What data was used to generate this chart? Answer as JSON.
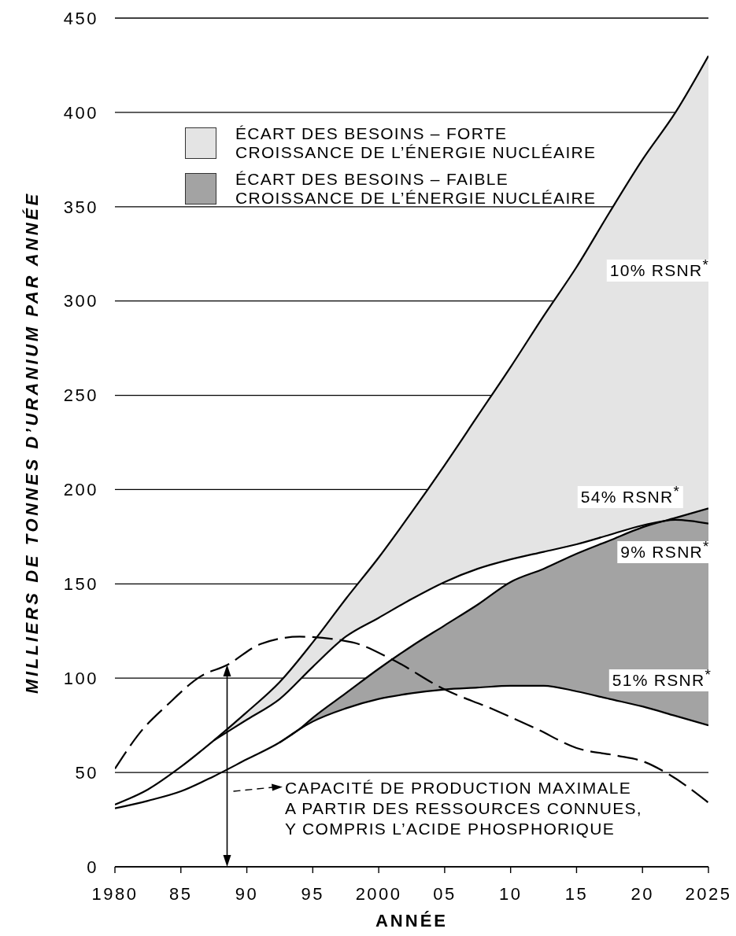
{
  "chart_data": {
    "type": "line",
    "xlabel": "ANNÉE",
    "ylabel": "MILLIERS DE TONNES D’URANIUM PAR ANNÉE",
    "xlim": [
      1980,
      2025
    ],
    "xticks": [
      1980,
      {
        "value": 1985,
        "label": "85"
      },
      {
        "value": 1990,
        "label": "90"
      },
      {
        "value": 1995,
        "label": "95"
      },
      2000,
      {
        "value": 2005,
        "label": "05"
      },
      {
        "value": 2010,
        "label": "10"
      },
      {
        "value": 2015,
        "label": "15"
      },
      {
        "value": 2020,
        "label": "20"
      },
      2025
    ],
    "ylim": [
      0,
      450
    ],
    "yticks": [
      0,
      50,
      100,
      150,
      200,
      250,
      300,
      350,
      400,
      450
    ],
    "grid": "y",
    "legend": "top left",
    "series": [
      {
        "type": "area",
        "name": "ÉCART DES BESOINS – FORTE\nCROISSANCE DE L’ÉNERGIE NUCLÉAIRE",
        "color": "#e4e4e4",
        "x": [
          1987.5,
          1990,
          1992.5,
          1995,
          1997.5,
          2000,
          2002.5,
          2005,
          2007.5,
          2010,
          2012.5,
          2015,
          2017.5,
          2020,
          2022.5,
          2025
        ],
        "values": [
          null,
          null,
          null,
          null,
          null,
          null,
          null,
          null,
          null,
          null,
          null,
          null,
          null,
          null,
          null,
          null
        ],
        "lower": [
          67,
          78,
          89,
          106,
          122,
          132,
          142,
          151,
          158,
          163,
          167,
          171,
          176,
          181,
          185,
          190
        ],
        "upper": [
          67,
          82,
          98,
          119,
          142,
          164,
          188,
          213,
          239,
          265,
          292,
          318,
          347,
          375,
          400,
          430
        ]
      },
      {
        "type": "area",
        "name": "ÉCART DES BESOINS – FAIBLE\nCROISSANCE DE L’ÉNERGIE NUCLÉAIRE",
        "color": "#a3a3a3",
        "x": [
          1994,
          1995,
          1997.5,
          2000,
          2002.5,
          2005,
          2007.5,
          2010,
          2012.5,
          2015,
          2017.5,
          2020,
          2022.5,
          2025
        ],
        "values": [
          null,
          null,
          null,
          null,
          null,
          null,
          null,
          null,
          null,
          null,
          null,
          null,
          null,
          null
        ],
        "lower": [
          73,
          77,
          84,
          89,
          92,
          94,
          95,
          96,
          96,
          93,
          89,
          85,
          80,
          75
        ],
        "upper": [
          73,
          79,
          92,
          105,
          117,
          128,
          139,
          151,
          158,
          166,
          173,
          180,
          185,
          190
        ]
      },
      {
        "type": "line",
        "color": "#000000",
        "x": [
          1980,
          1982.5,
          1985,
          1987.5,
          1990,
          1992.5,
          1995,
          1997.5,
          2000,
          2002.5,
          2005,
          2007.5,
          2010,
          2012.5,
          2015,
          2017.5,
          2020,
          2022.5,
          2025
        ],
        "values": [
          33,
          41,
          53,
          67,
          82,
          98,
          119,
          142,
          164,
          188,
          213,
          239,
          265,
          292,
          318,
          347,
          375,
          400,
          430
        ]
      },
      {
        "type": "line",
        "color": "#000000",
        "x": [
          1987.5,
          1990,
          1992.5,
          1995,
          1997.5,
          2000,
          2002.5,
          2005,
          2007.5,
          2010,
          2012.5,
          2015,
          2017.5,
          2020,
          2022.5,
          2025
        ],
        "values": [
          67,
          78,
          89,
          106,
          122,
          132,
          142,
          151,
          158,
          163,
          167,
          171,
          176,
          181,
          184,
          182
        ]
      },
      {
        "type": "line",
        "color": "#000000",
        "x": [
          1992.5,
          1994,
          1995,
          1997.5,
          2000,
          2002.5,
          2005,
          2007.5,
          2010,
          2012.5,
          2015,
          2017.5,
          2020,
          2022.5,
          2025
        ],
        "values": [
          66,
          73,
          79,
          92,
          105,
          117,
          128,
          139,
          151,
          158,
          166,
          173,
          180,
          185,
          190
        ]
      },
      {
        "type": "line",
        "color": "#000000",
        "x": [
          1980,
          1982.5,
          1985,
          1987.5,
          1990,
          1992.5,
          1994,
          1995,
          1997.5,
          2000,
          2002.5,
          2005,
          2007.5,
          2010,
          2012.5,
          2015,
          2017.5,
          2020,
          2022.5,
          2025
        ],
        "values": [
          31,
          35,
          40,
          48,
          57,
          66,
          73,
          77,
          84,
          89,
          92,
          94,
          95,
          96,
          96,
          93,
          89,
          85,
          80,
          75
        ]
      },
      {
        "type": "line",
        "color": "#000000",
        "line_style": "dashed",
        "x": [
          1980,
          1982,
          1984,
          1986.5,
          1988.5,
          1991,
          1994,
          1998,
          2001,
          2005,
          2008.5,
          2012,
          2015,
          2018,
          2020,
          2022,
          2025
        ],
        "values": [
          52,
          72,
          86,
          101,
          107,
          118,
          122,
          119,
          110,
          94,
          84,
          73,
          63,
          59,
          56,
          49,
          34
        ]
      }
    ],
    "annotations": [
      "10% RSNR$^{*}$",
      "54% RSNR$^{*}$",
      "9% RSNR$^{*}$",
      "51% RSNR$^{*}$",
      "CAPACITÉ DE PRODUCTION MAXIMALE\nA PARTIR DES RESSOURCES CONNUES,\nY COMPRIS L’ACIDE PHOSPHORIQUE"
    ]
  }
}
